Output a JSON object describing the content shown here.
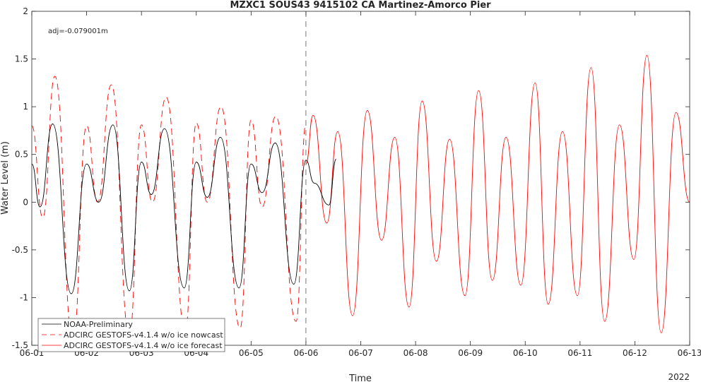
{
  "chart_data": {
    "type": "line",
    "title": "MZXC1 SOUS43 9415102 CA Martinez-Amorco Pier",
    "xlabel": "Time",
    "ylabel": "Water Level (m)",
    "xlim": [
      0,
      12
    ],
    "ylim": [
      -1.5,
      2
    ],
    "x_ticks": [
      0,
      1,
      2,
      3,
      4,
      5,
      6,
      7,
      8,
      9,
      10,
      11,
      12
    ],
    "x_tick_labels": [
      "06-01",
      "06-02",
      "06-03",
      "06-04",
      "06-05",
      "06-06",
      "06-07",
      "06-08",
      "06-09",
      "06-10",
      "06-11",
      "06-12",
      "06-13"
    ],
    "x_year_label": "2022",
    "y_ticks": [
      -1.5,
      -1,
      -0.5,
      0,
      0.5,
      1,
      1.5,
      2
    ],
    "y_tick_labels": [
      "-1.5",
      "-1",
      "-0.5",
      "0",
      "0.5",
      "1",
      "1.5",
      "2"
    ],
    "annotation": "adj=-0.079001m",
    "nowcast_forecast_split_x": 5,
    "grid": false,
    "legend_position": "bottom-left",
    "series": [
      {
        "name": "NOAA-Preliminary",
        "color": "#000000",
        "style": "solid",
        "x": [
          0,
          0.15,
          0.38,
          0.72,
          1.0,
          1.22,
          1.48,
          1.78,
          2.0,
          2.18,
          2.42,
          2.78,
          3.0,
          3.2,
          3.44,
          3.78,
          4.0,
          4.2,
          4.44,
          4.78,
          5.0,
          5.15,
          5.42,
          5.55
        ],
        "y": [
          0.4,
          -0.05,
          0.82,
          -0.96,
          0.4,
          0.0,
          0.81,
          -0.93,
          0.42,
          0.08,
          0.77,
          -0.9,
          0.42,
          0.05,
          0.68,
          -0.9,
          0.4,
          0.1,
          0.62,
          -0.86,
          0.44,
          0.2,
          -0.03,
          0.45
        ]
      },
      {
        "name": "ADCIRC GESTOFS-v4.1.4 w/o ice nowcast",
        "color": "#ff0000",
        "style": "dashed",
        "x": [
          0,
          0.2,
          0.42,
          0.75,
          1.0,
          1.2,
          1.45,
          1.78,
          2.0,
          2.2,
          2.45,
          2.8,
          3.0,
          3.2,
          3.45,
          3.8,
          4.0,
          4.2,
          4.45,
          4.82,
          5.0
        ],
        "y": [
          0.8,
          -0.16,
          1.32,
          -1.46,
          0.8,
          0.0,
          1.23,
          -1.4,
          0.81,
          0.0,
          1.1,
          -1.35,
          0.83,
          0.0,
          1.0,
          -1.32,
          0.86,
          -0.05,
          0.9,
          -1.25,
          0.82
        ]
      },
      {
        "name": "ADCIRC GESTOFS-v4.1.4 w/o ice forecast",
        "color": "#ff0000",
        "style": "solid",
        "x": [
          5,
          5.13,
          5.38,
          5.58,
          5.85,
          6.12,
          6.38,
          6.62,
          6.88,
          7.12,
          7.38,
          7.62,
          7.9,
          8.15,
          8.4,
          8.65,
          8.92,
          9.18,
          9.42,
          9.68,
          9.95,
          10.2,
          10.45,
          10.72,
          10.98,
          11.22,
          11.48,
          11.75,
          12.0
        ],
        "y": [
          0.4,
          0.91,
          -0.22,
          0.74,
          -1.19,
          0.96,
          -0.4,
          0.68,
          -1.1,
          1.06,
          -0.62,
          0.66,
          -0.98,
          1.17,
          -0.82,
          0.68,
          -0.87,
          1.25,
          -1.07,
          0.74,
          -0.98,
          1.41,
          -1.25,
          0.81,
          -0.6,
          1.54,
          -1.37,
          0.94,
          0.0
        ]
      }
    ]
  }
}
